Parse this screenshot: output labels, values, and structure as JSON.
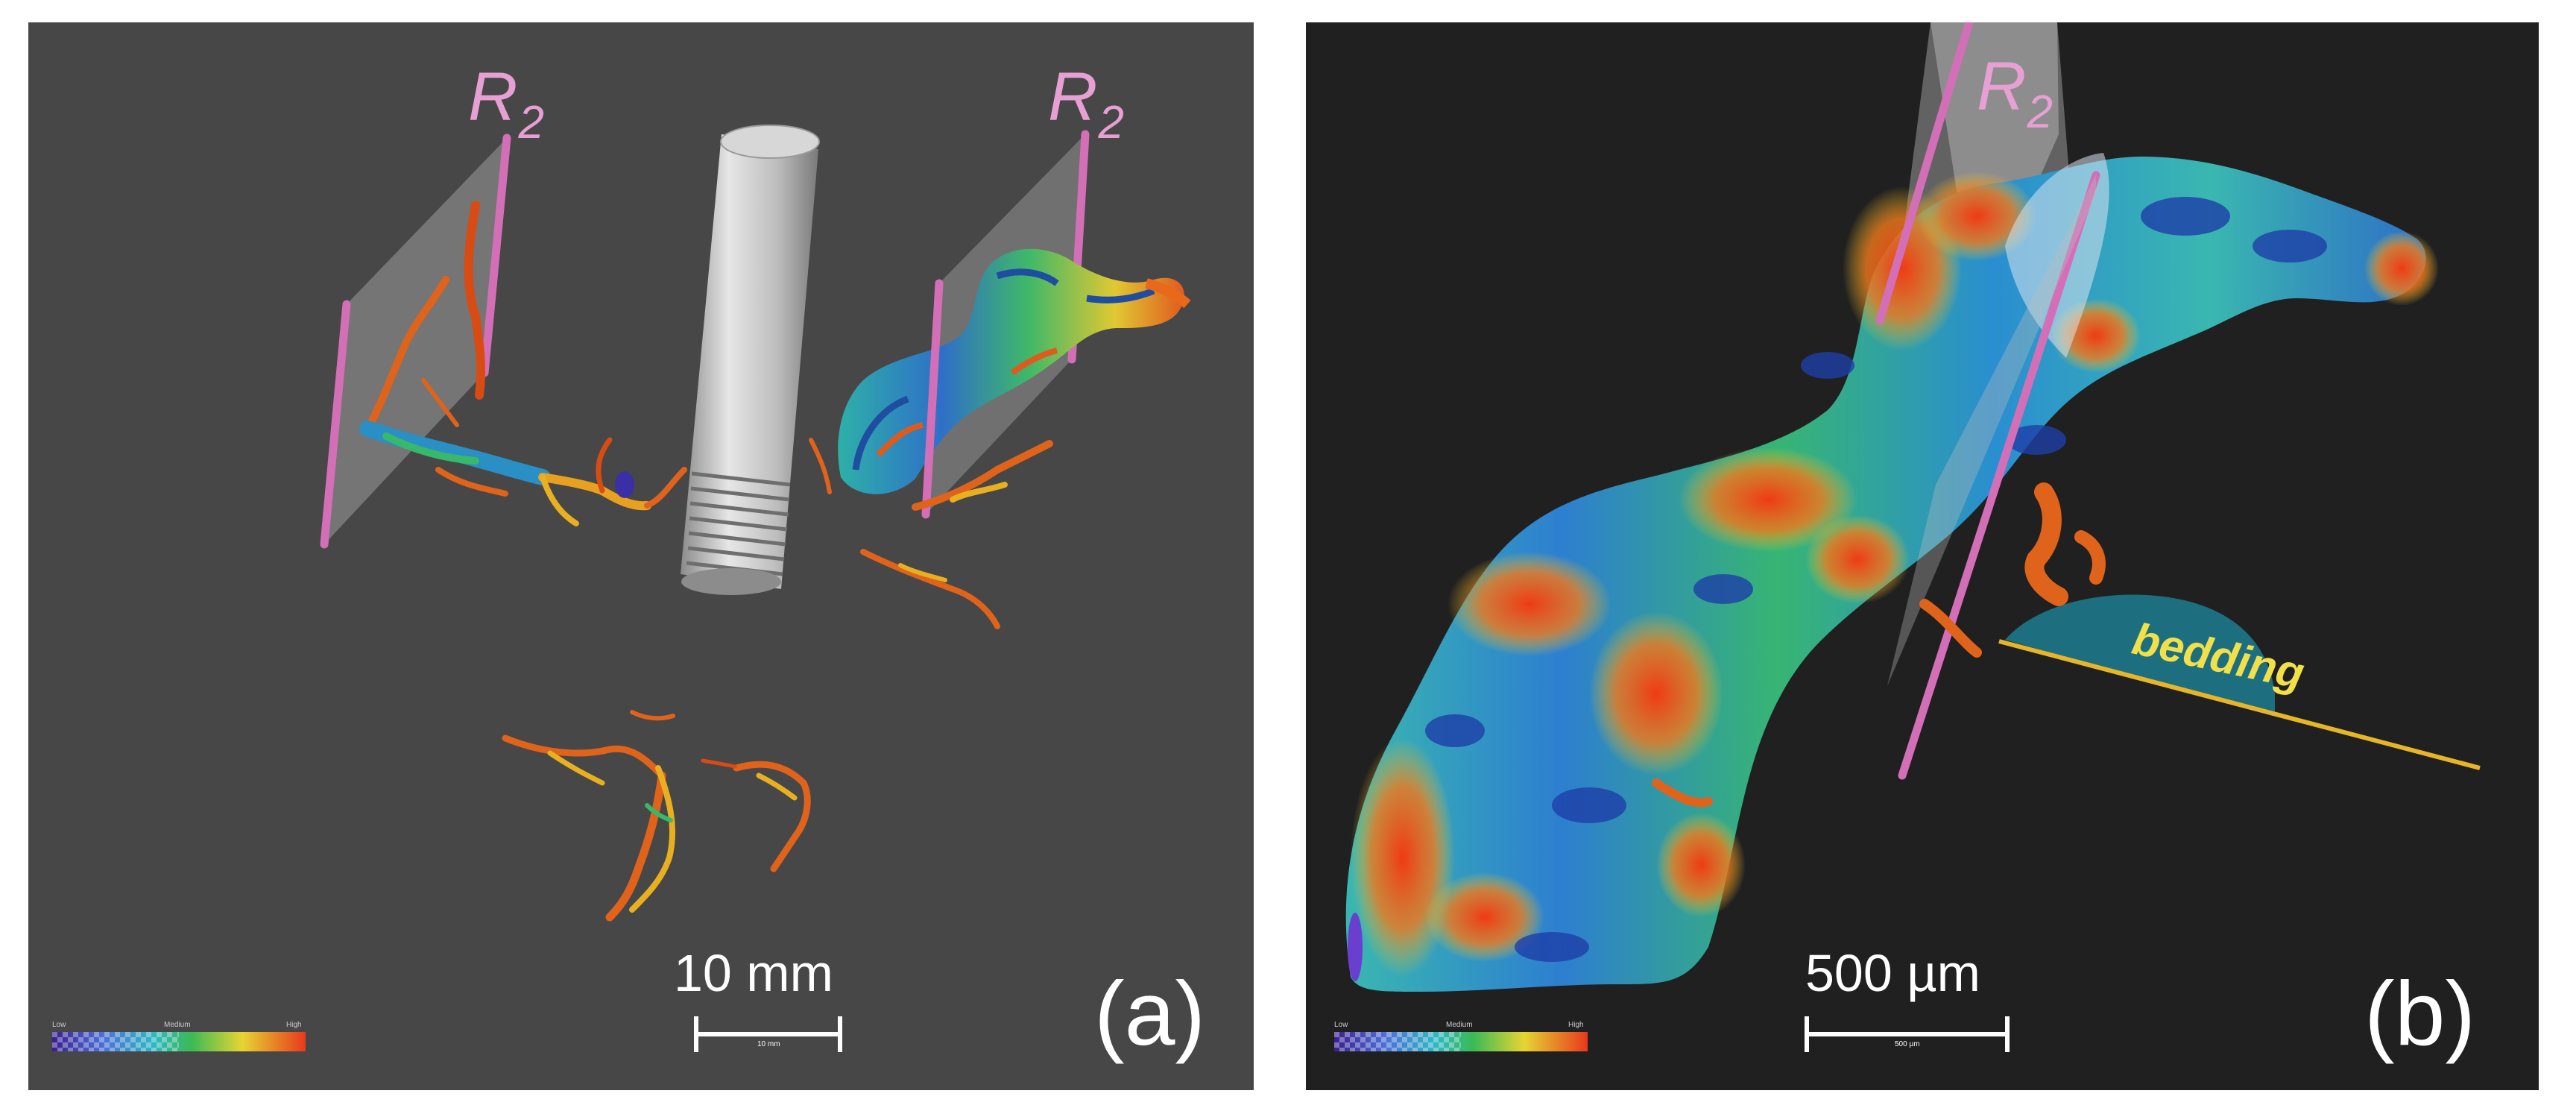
{
  "panel_a": {
    "label": "(a)",
    "plane_labels": [
      "R",
      "R"
    ],
    "plane_subscripts": [
      "2",
      "2"
    ],
    "scale_bar": {
      "text": "10 mm",
      "small_text": "10 mm"
    },
    "colorbar": {
      "low": "Low",
      "medium": "Medium",
      "high": "High"
    }
  },
  "panel_b": {
    "label": "(b)",
    "plane_label": "R",
    "plane_subscript": "2",
    "annotation": "bedding",
    "scale_bar": {
      "text": "500 µm",
      "small_text": "500 µm"
    },
    "colorbar": {
      "low": "Low",
      "medium": "Medium",
      "high": "High"
    }
  },
  "colors": {
    "panel_a_background": "#474747",
    "panel_b_background": "#202020",
    "plane_edge": "#d36fb7",
    "plane_label": "#e7a0d4",
    "bedding_fill": "#1d6f80",
    "bedding_text": "#f1e04a",
    "bedding_line": "#e7b52a"
  }
}
